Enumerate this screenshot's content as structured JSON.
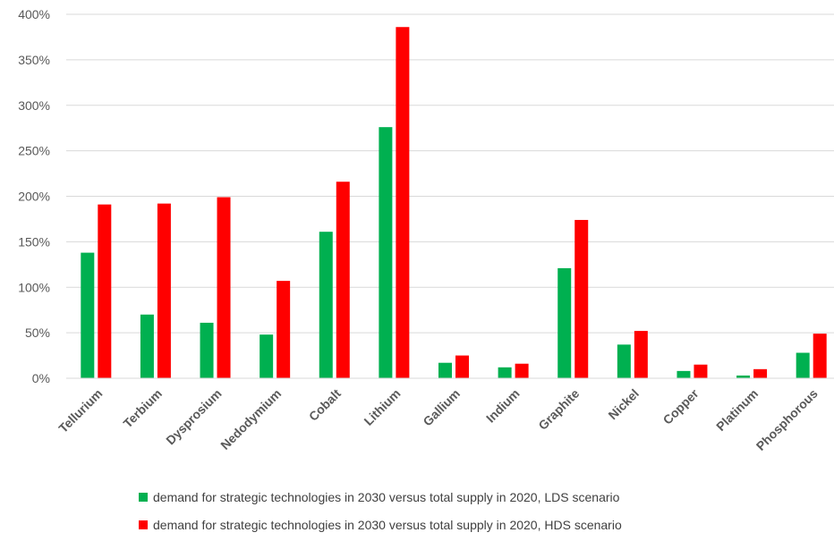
{
  "chart_data": {
    "type": "bar",
    "categories": [
      "Tellurium",
      "Terbium",
      "Dysprosium",
      "Nedodymium",
      "Cobalt",
      "Lithium",
      "Gallium",
      "Indium",
      "Graphite",
      "Nickel",
      "Copper",
      "Platinum",
      "Phosphorous"
    ],
    "series": [
      {
        "name": "demand for strategic technologies  in 2030 versus total supply in 2020, LDS scenario",
        "color": "#00b050",
        "values": [
          138,
          70,
          61,
          48,
          161,
          276,
          17,
          12,
          121,
          37,
          8,
          3,
          28
        ]
      },
      {
        "name": "demand for strategic technologies  in 2030 versus total supply in 2020, HDS scenario",
        "color": "#ff0000",
        "values": [
          191,
          192,
          199,
          107,
          216,
          386,
          25,
          16,
          174,
          52,
          15,
          10,
          49
        ]
      }
    ],
    "ylim": [
      0,
      400
    ],
    "yticks": [
      "0%",
      "50%",
      "100%",
      "150%",
      "200%",
      "250%",
      "300%",
      "350%",
      "400%"
    ],
    "title": "",
    "xlabel": "",
    "ylabel": "",
    "grid": true,
    "legend_position": "bottom"
  }
}
